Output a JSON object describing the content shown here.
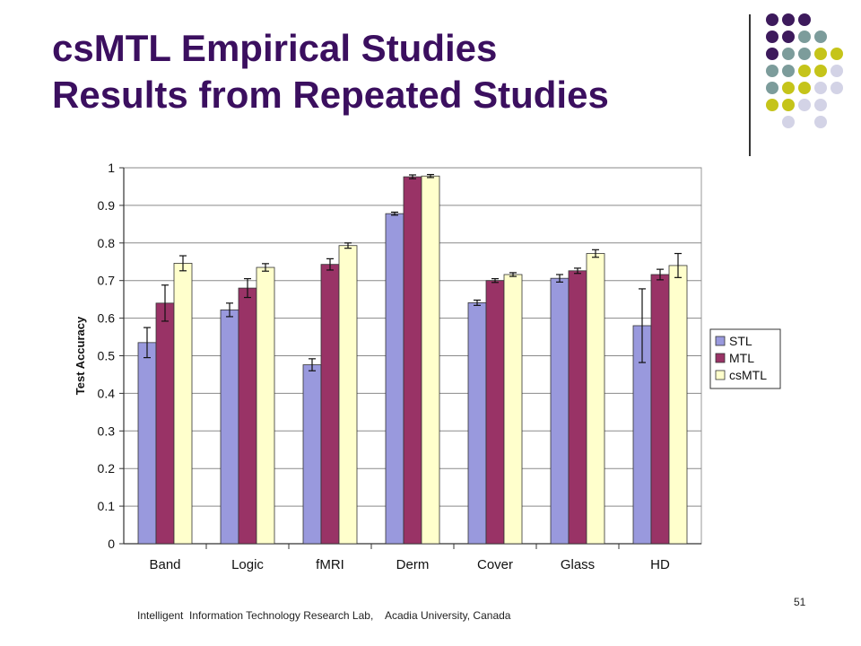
{
  "slide": {
    "title_line1": "csMTL Empirical Studies",
    "title_line2": "Results from Repeated Studies",
    "footer": "Intelligent  Information Technology Research Lab,    Acadia University, Canada",
    "page_number": "51"
  },
  "colors": {
    "title": "#3b0f5f",
    "dot_purple": "#3d1a5c",
    "dot_teal": "#7c9c9b",
    "dot_yellow": "#c5c41a",
    "dot_lavender": "#d3d3e6"
  },
  "chart_data": {
    "type": "bar",
    "title": "",
    "xlabel": "",
    "ylabel": "Test Accuracy",
    "ylim": [
      0,
      1
    ],
    "yticks": [
      "0",
      "0.1",
      "0.2",
      "0.3",
      "0.4",
      "0.5",
      "0.6",
      "0.7",
      "0.8",
      "0.9",
      "1"
    ],
    "grid": true,
    "legend_position": "right",
    "categories": [
      "Band",
      "Logic",
      "fMRI",
      "Derm",
      "Cover",
      "Glass",
      "HD"
    ],
    "series": [
      {
        "name": "STL",
        "color": "#9999dd",
        "values": [
          0.535,
          0.622,
          0.476,
          0.878,
          0.641,
          0.706,
          0.58
        ],
        "errors": [
          0.04,
          0.018,
          0.016,
          0.004,
          0.007,
          0.01,
          0.098
        ]
      },
      {
        "name": "MTL",
        "color": "#993366",
        "values": [
          0.64,
          0.68,
          0.743,
          0.976,
          0.7,
          0.726,
          0.716
        ],
        "errors": [
          0.048,
          0.025,
          0.015,
          0.005,
          0.005,
          0.007,
          0.014
        ]
      },
      {
        "name": "csMTL",
        "color": "#ffffcc",
        "values": [
          0.746,
          0.735,
          0.793,
          0.978,
          0.716,
          0.772,
          0.74
        ],
        "errors": [
          0.02,
          0.01,
          0.007,
          0.004,
          0.005,
          0.01,
          0.032
        ]
      }
    ]
  }
}
